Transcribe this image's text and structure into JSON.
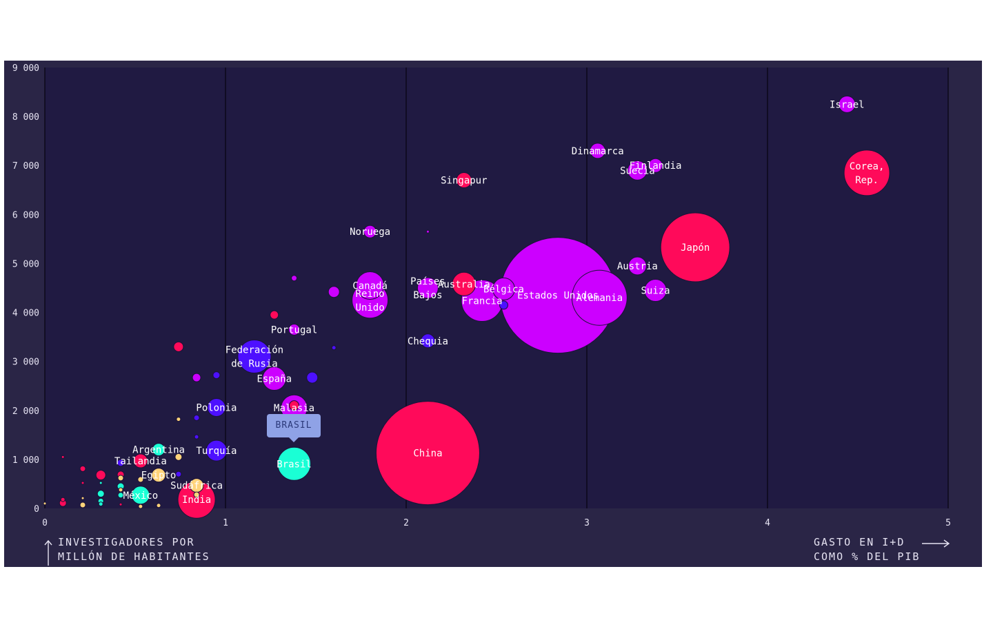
{
  "axis_titles": {
    "y_line1": "INVESTIGADORES POR",
    "y_line2": "MILLÓN DE HABITANTES",
    "x_line1": "GASTO EN I+D",
    "x_line2": "COMO % DEL PIB"
  },
  "tooltip": {
    "label": "BRASIL"
  },
  "colors": {
    "background": "#2a2546",
    "plot": "#201a42",
    "pink": "#ff0a5a",
    "purple": "#cc00ff",
    "blue": "#4d10ff",
    "cyan": "#1affd5",
    "yellow": "#ffd37a",
    "tooltip": "#8fa2e6"
  },
  "chart_data": {
    "type": "scatter",
    "subtype": "bubble",
    "xlim": [
      0,
      5
    ],
    "ylim": [
      0,
      9000
    ],
    "x_ticks": [
      {
        "value": 0,
        "label": "0"
      },
      {
        "value": 1,
        "label": "1"
      },
      {
        "value": 2,
        "label": "2"
      },
      {
        "value": 3,
        "label": "3"
      },
      {
        "value": 4,
        "label": "4"
      },
      {
        "value": 5,
        "label": "5"
      }
    ],
    "y_ticks": [
      {
        "value": 0,
        "label": "0"
      },
      {
        "value": 1000,
        "label": "1 000"
      },
      {
        "value": 2000,
        "label": "2 000"
      },
      {
        "value": 3000,
        "label": "3 000"
      },
      {
        "value": 4000,
        "label": "4 000"
      },
      {
        "value": 5000,
        "label": "5 000"
      },
      {
        "value": 6000,
        "label": "6 000"
      },
      {
        "value": 7000,
        "label": "7 000"
      },
      {
        "value": 8000,
        "label": "8 000"
      },
      {
        "value": 9000,
        "label": "9 000"
      }
    ],
    "vertical_grid": true,
    "points": [
      {
        "label": "Israel",
        "x": 4.44,
        "y": 8250,
        "r": 12,
        "color": "purple"
      },
      {
        "label": "Corea, Rep.",
        "x": 4.55,
        "y": 6850,
        "r": 33,
        "color": "pink"
      },
      {
        "label": "Dinamarca",
        "x": 3.06,
        "y": 7300,
        "r": 11,
        "color": "purple"
      },
      {
        "label": "Finlandia",
        "x": 3.38,
        "y": 7000,
        "r": 10,
        "color": "purple"
      },
      {
        "label": "Suecia",
        "x": 3.28,
        "y": 6900,
        "r": 14,
        "color": "purple"
      },
      {
        "label": "Singapur",
        "x": 2.32,
        "y": 6700,
        "r": 11,
        "color": "pink"
      },
      {
        "label": "Japón",
        "x": 3.6,
        "y": 5330,
        "r": 50,
        "color": "pink"
      },
      {
        "label": "Noruega",
        "x": 1.8,
        "y": 5650,
        "r": 9,
        "color": "purple"
      },
      {
        "label": "Austria",
        "x": 3.28,
        "y": 4950,
        "r": 13,
        "color": "purple"
      },
      {
        "label": "Suiza",
        "x": 3.38,
        "y": 4450,
        "r": 16,
        "color": "purple"
      },
      {
        "label": "Estados Unidos",
        "x": 2.84,
        "y": 4350,
        "r": 84,
        "color": "purple"
      },
      {
        "label": "Alemania",
        "x": 3.07,
        "y": 4300,
        "r": 40,
        "color": "purple"
      },
      {
        "label": "Francia",
        "x": 2.42,
        "y": 4240,
        "r": 30,
        "color": "purple"
      },
      {
        "label": "Bélgica",
        "x": 2.54,
        "y": 4480,
        "r": 16,
        "color": "purple"
      },
      {
        "label": "Australia",
        "x": 2.32,
        "y": 4580,
        "r": 17,
        "color": "pink"
      },
      {
        "label": "Países Bajos",
        "x": 2.12,
        "y": 4500,
        "r": 15,
        "color": "purple"
      },
      {
        "label": "Canadá",
        "x": 1.8,
        "y": 4550,
        "r": 20,
        "color": "purple"
      },
      {
        "label": "Reino Unido",
        "x": 1.8,
        "y": 4250,
        "r": 26,
        "color": "purple"
      },
      {
        "label": "Chequia",
        "x": 2.12,
        "y": 3420,
        "r": 10,
        "color": "blue"
      },
      {
        "label": "Portugal",
        "x": 1.38,
        "y": 3650,
        "r": 8,
        "color": "purple"
      },
      {
        "label": "Federación de Rusia",
        "x": 1.16,
        "y": 3100,
        "r": 24,
        "color": "blue"
      },
      {
        "label": "España",
        "x": 1.27,
        "y": 2650,
        "r": 17,
        "color": "purple"
      },
      {
        "label": "Polonia",
        "x": 0.95,
        "y": 2060,
        "r": 13,
        "color": "blue"
      },
      {
        "label": "Malasia",
        "x": 1.38,
        "y": 2050,
        "r": 19,
        "color": "purple"
      },
      {
        "label": "Turquía",
        "x": 0.95,
        "y": 1180,
        "r": 15,
        "color": "blue"
      },
      {
        "label": "China",
        "x": 2.12,
        "y": 1130,
        "r": 75,
        "color": "pink"
      },
      {
        "label": "Brasil",
        "x": 1.38,
        "y": 910,
        "r": 24,
        "color": "cyan"
      },
      {
        "label": "Argentina",
        "x": 0.63,
        "y": 1200,
        "r": 9,
        "color": "cyan"
      },
      {
        "label": "Tailandia",
        "x": 0.53,
        "y": 970,
        "r": 10,
        "color": "pink"
      },
      {
        "label": "Egipto",
        "x": 0.63,
        "y": 680,
        "r": 10,
        "color": "yellow"
      },
      {
        "label": "Sudáfrica",
        "x": 0.84,
        "y": 470,
        "r": 10,
        "color": "yellow"
      },
      {
        "label": "México",
        "x": 0.53,
        "y": 270,
        "r": 13,
        "color": "cyan"
      },
      {
        "label": "India",
        "x": 0.84,
        "y": 180,
        "r": 27,
        "color": "pink"
      },
      {
        "x": 2.12,
        "y": 5650,
        "r": 2,
        "color": "purple"
      },
      {
        "x": 1.38,
        "y": 4700,
        "r": 4,
        "color": "purple"
      },
      {
        "x": 1.6,
        "y": 4420,
        "r": 8,
        "color": "purple"
      },
      {
        "x": 1.27,
        "y": 3950,
        "r": 6,
        "color": "pink"
      },
      {
        "x": 0.74,
        "y": 3300,
        "r": 7,
        "color": "pink"
      },
      {
        "x": 1.6,
        "y": 3280,
        "r": 3,
        "color": "blue"
      },
      {
        "x": 0.84,
        "y": 2670,
        "r": 6,
        "color": "purple"
      },
      {
        "x": 0.95,
        "y": 2720,
        "r": 5,
        "color": "blue"
      },
      {
        "x": 1.48,
        "y": 2670,
        "r": 8,
        "color": "blue"
      },
      {
        "x": 2.54,
        "y": 4150,
        "r": 6,
        "color": "blue"
      },
      {
        "x": 1.38,
        "y": 2100,
        "r": 7,
        "color": "pink"
      },
      {
        "x": 0.84,
        "y": 1850,
        "r": 4,
        "color": "blue"
      },
      {
        "x": 0.74,
        "y": 1820,
        "r": 3,
        "color": "yellow"
      },
      {
        "x": 0.84,
        "y": 1460,
        "r": 3,
        "color": "blue"
      },
      {
        "x": 0.74,
        "y": 1050,
        "r": 5,
        "color": "yellow"
      },
      {
        "x": 0.42,
        "y": 930,
        "r": 5,
        "color": "blue"
      },
      {
        "x": 0.21,
        "y": 810,
        "r": 4,
        "color": "pink"
      },
      {
        "x": 0.1,
        "y": 1050,
        "r": 2,
        "color": "pink"
      },
      {
        "x": 0.31,
        "y": 680,
        "r": 7,
        "color": "pink"
      },
      {
        "x": 0.42,
        "y": 690,
        "r": 5,
        "color": "pink"
      },
      {
        "x": 0.42,
        "y": 620,
        "r": 4,
        "color": "yellow"
      },
      {
        "x": 0.53,
        "y": 590,
        "r": 4,
        "color": "yellow"
      },
      {
        "x": 0.21,
        "y": 520,
        "r": 2,
        "color": "pink"
      },
      {
        "x": 0.31,
        "y": 520,
        "r": 2,
        "color": "cyan"
      },
      {
        "x": 0.42,
        "y": 450,
        "r": 5,
        "color": "cyan"
      },
      {
        "x": 0.42,
        "y": 380,
        "r": 3,
        "color": "yellow"
      },
      {
        "x": 0.31,
        "y": 300,
        "r": 5,
        "color": "cyan"
      },
      {
        "x": 0.42,
        "y": 270,
        "r": 4,
        "color": "cyan"
      },
      {
        "x": 0.21,
        "y": 210,
        "r": 2,
        "color": "yellow"
      },
      {
        "x": 0.1,
        "y": 180,
        "r": 3,
        "color": "pink"
      },
      {
        "x": 0.31,
        "y": 150,
        "r": 4,
        "color": "cyan"
      },
      {
        "x": 0.1,
        "y": 110,
        "r": 5,
        "color": "pink"
      },
      {
        "x": 0.21,
        "y": 70,
        "r": 4,
        "color": "yellow"
      },
      {
        "x": 0.31,
        "y": 90,
        "r": 3,
        "color": "cyan"
      },
      {
        "x": 0.42,
        "y": 80,
        "r": 2,
        "color": "pink"
      },
      {
        "x": 0.53,
        "y": 40,
        "r": 3,
        "color": "yellow"
      },
      {
        "x": 0.63,
        "y": 60,
        "r": 3,
        "color": "yellow"
      },
      {
        "x": 0.0,
        "y": 100,
        "r": 2,
        "color": "yellow"
      },
      {
        "x": 0.84,
        "y": 280,
        "r": 4,
        "color": "yellow"
      },
      {
        "x": 0.74,
        "y": 700,
        "r": 4,
        "color": "blue"
      }
    ]
  }
}
